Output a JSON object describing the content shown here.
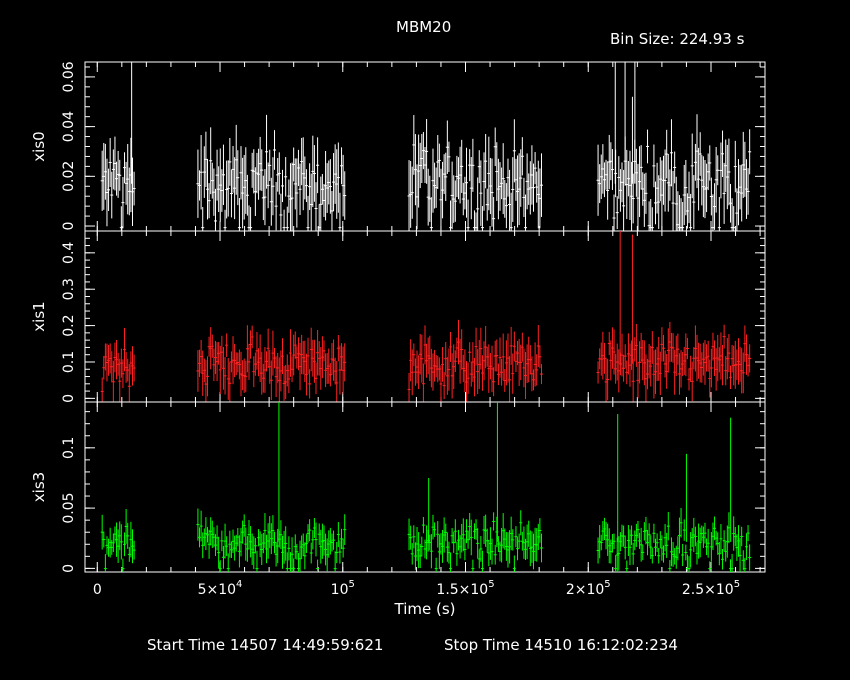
{
  "chart_data": {
    "type": "line",
    "title": "MBM20",
    "bin_size_label": "Bin Size:  224.93  s",
    "xlabel": "Time (s)",
    "xlim": [
      -5000,
      272000
    ],
    "x_ticks": [
      {
        "value": 0,
        "base": "0",
        "exp": ""
      },
      {
        "value": 50000,
        "base": "5×10",
        "exp": "4"
      },
      {
        "value": 100000,
        "base": "10",
        "exp": "5"
      },
      {
        "value": 150000,
        "base": "1.5×10",
        "exp": "5"
      },
      {
        "value": 200000,
        "base": "2×10",
        "exp": "5"
      },
      {
        "value": 250000,
        "base": "2.5×10",
        "exp": "5"
      }
    ],
    "x_minor_step": 10000,
    "segments": [
      [
        2000,
        15000
      ],
      [
        41000,
        101000
      ],
      [
        127000,
        181000
      ],
      [
        204000,
        266000
      ]
    ],
    "panels": [
      {
        "name": "xis0",
        "color": "#ffffff",
        "ylim": [
          -0.002,
          0.066
        ],
        "yticks": [
          0,
          0.02,
          0.04,
          0.06
        ],
        "ytick_labels": [
          "0",
          "0.02",
          "0.04",
          "0.06"
        ],
        "baseline": 0.017,
        "noise": 0.01,
        "dropouts": 0.05,
        "spikes": [
          [
            14000,
            0.066
          ],
          [
            211000,
            0.066
          ],
          [
            215000,
            0.066
          ],
          [
            219000,
            0.066
          ],
          [
            218000,
            0.052
          ]
        ]
      },
      {
        "name": "xis1",
        "color": "#ff2222",
        "ylim": [
          -0.01,
          0.46
        ],
        "yticks": [
          0,
          0.1,
          0.2,
          0.3,
          0.4
        ],
        "ytick_labels": [
          "0",
          "0.1",
          "0.2",
          "0.3",
          "0.4"
        ],
        "baseline": 0.095,
        "noise": 0.045,
        "dropouts": 0,
        "spikes": [
          [
            213000,
            0.46
          ],
          [
            218000,
            0.45
          ]
        ]
      },
      {
        "name": "xis3",
        "color": "#00ff00",
        "ylim": [
          -0.003,
          0.138
        ],
        "yticks": [
          0,
          0.05,
          0.1
        ],
        "ytick_labels": [
          "0",
          "0.05",
          "0.1"
        ],
        "baseline": 0.022,
        "noise": 0.01,
        "dropouts": 0.02,
        "spikes": [
          [
            74000,
            0.138
          ],
          [
            135000,
            0.075
          ],
          [
            163000,
            0.138
          ],
          [
            212000,
            0.128
          ],
          [
            240000,
            0.095
          ],
          [
            258000,
            0.125
          ]
        ]
      }
    ]
  },
  "footer": {
    "start_time": "Start Time  14507  14:49:59:621",
    "stop_time": "Stop Time  14510  16:12:02:234"
  }
}
